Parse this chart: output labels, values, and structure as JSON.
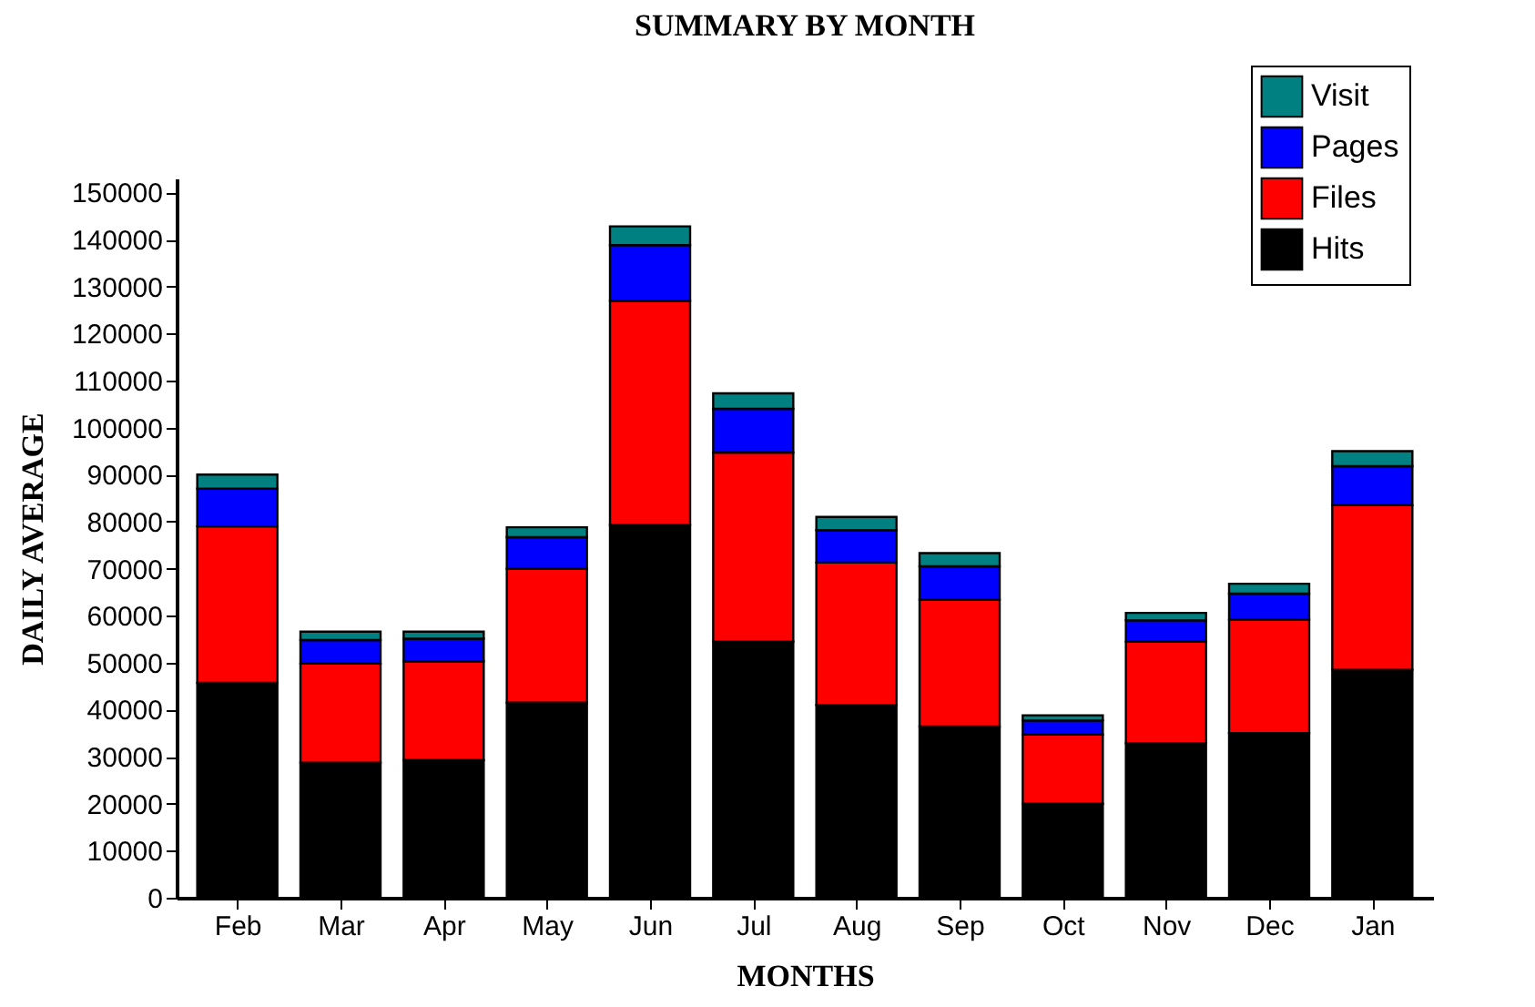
{
  "chart_data": {
    "type": "bar",
    "title": "SUMMARY BY MONTH",
    "xlabel": "MONTHS",
    "ylabel": "DAILY AVERAGE",
    "categories": [
      "Feb",
      "Mar",
      "Apr",
      "May",
      "Jun",
      "Jul",
      "Aug",
      "Sep",
      "Oct",
      "Nov",
      "Dec",
      "Jan"
    ],
    "stacked": true,
    "series": [
      {
        "name": "Hits",
        "color": "#000000",
        "values": [
          45700,
          28700,
          29300,
          41500,
          79300,
          54500,
          41000,
          36400,
          20000,
          32900,
          35000,
          48500
        ]
      },
      {
        "name": "Files",
        "color": "#ff0000",
        "values": [
          33300,
          21100,
          21000,
          28500,
          47700,
          40200,
          30300,
          27000,
          14700,
          21600,
          24200,
          35000
        ]
      },
      {
        "name": "Pages",
        "color": "#0000ff",
        "values": [
          8000,
          5000,
          4800,
          6700,
          11800,
          9300,
          6900,
          7100,
          3000,
          4500,
          5500,
          8300
        ]
      },
      {
        "name": "Visit",
        "color": "#008080",
        "values": [
          3000,
          1800,
          1500,
          2100,
          4000,
          3300,
          2800,
          2800,
          1100,
          1600,
          2100,
          3200
        ]
      }
    ],
    "ylim": [
      0,
      153000
    ],
    "yticks": [
      0,
      10000,
      20000,
      30000,
      40000,
      50000,
      60000,
      70000,
      80000,
      90000,
      100000,
      110000,
      120000,
      130000,
      140000,
      150000
    ],
    "grid": false,
    "legend": "top right"
  }
}
